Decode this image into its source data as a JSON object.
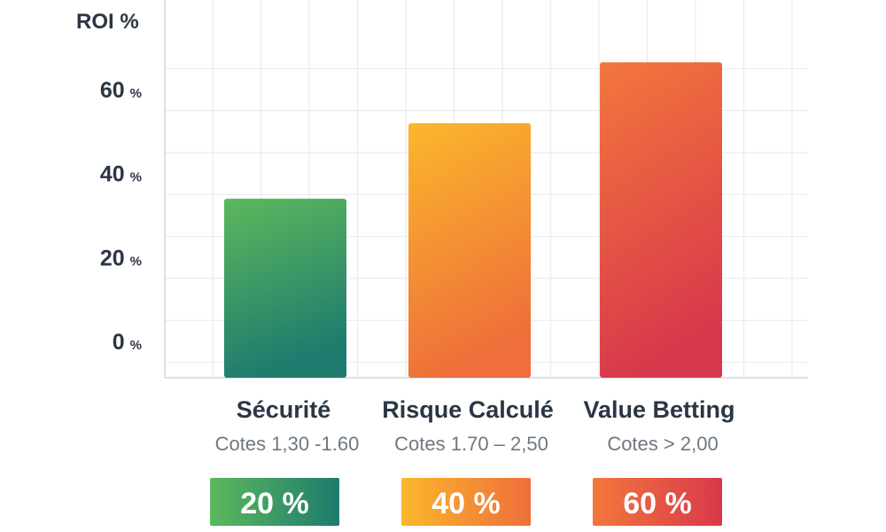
{
  "chart_data": {
    "type": "bar",
    "ylabel": "ROI %",
    "ylim": [
      -8,
      68
    ],
    "yticks": [
      {
        "value": 0,
        "label": "0",
        "unit": "%"
      },
      {
        "value": 20,
        "label": "20",
        "unit": "%"
      },
      {
        "value": 40,
        "label": "40",
        "unit": "%"
      },
      {
        "value": 60,
        "label": "60",
        "unit": "%"
      }
    ],
    "grid": true,
    "categories": [
      "Sécurité",
      "Risque Calculé",
      "Value Betting"
    ],
    "subtitles": [
      "Cotes 1,30 -1.60",
      "Cotes 1.70 – 2,50",
      "Cotes > 2,00"
    ],
    "values": [
      34,
      52,
      66.5
    ],
    "badges": [
      "20 %",
      "40 %",
      "60 %"
    ],
    "colors": [
      {
        "top": "#5cb85c",
        "bottom": "#1e7b6e"
      },
      {
        "top": "#fbb72c",
        "bottom": "#ee6f3a"
      },
      {
        "top": "#f3773c",
        "bottom": "#d8384b"
      }
    ]
  }
}
